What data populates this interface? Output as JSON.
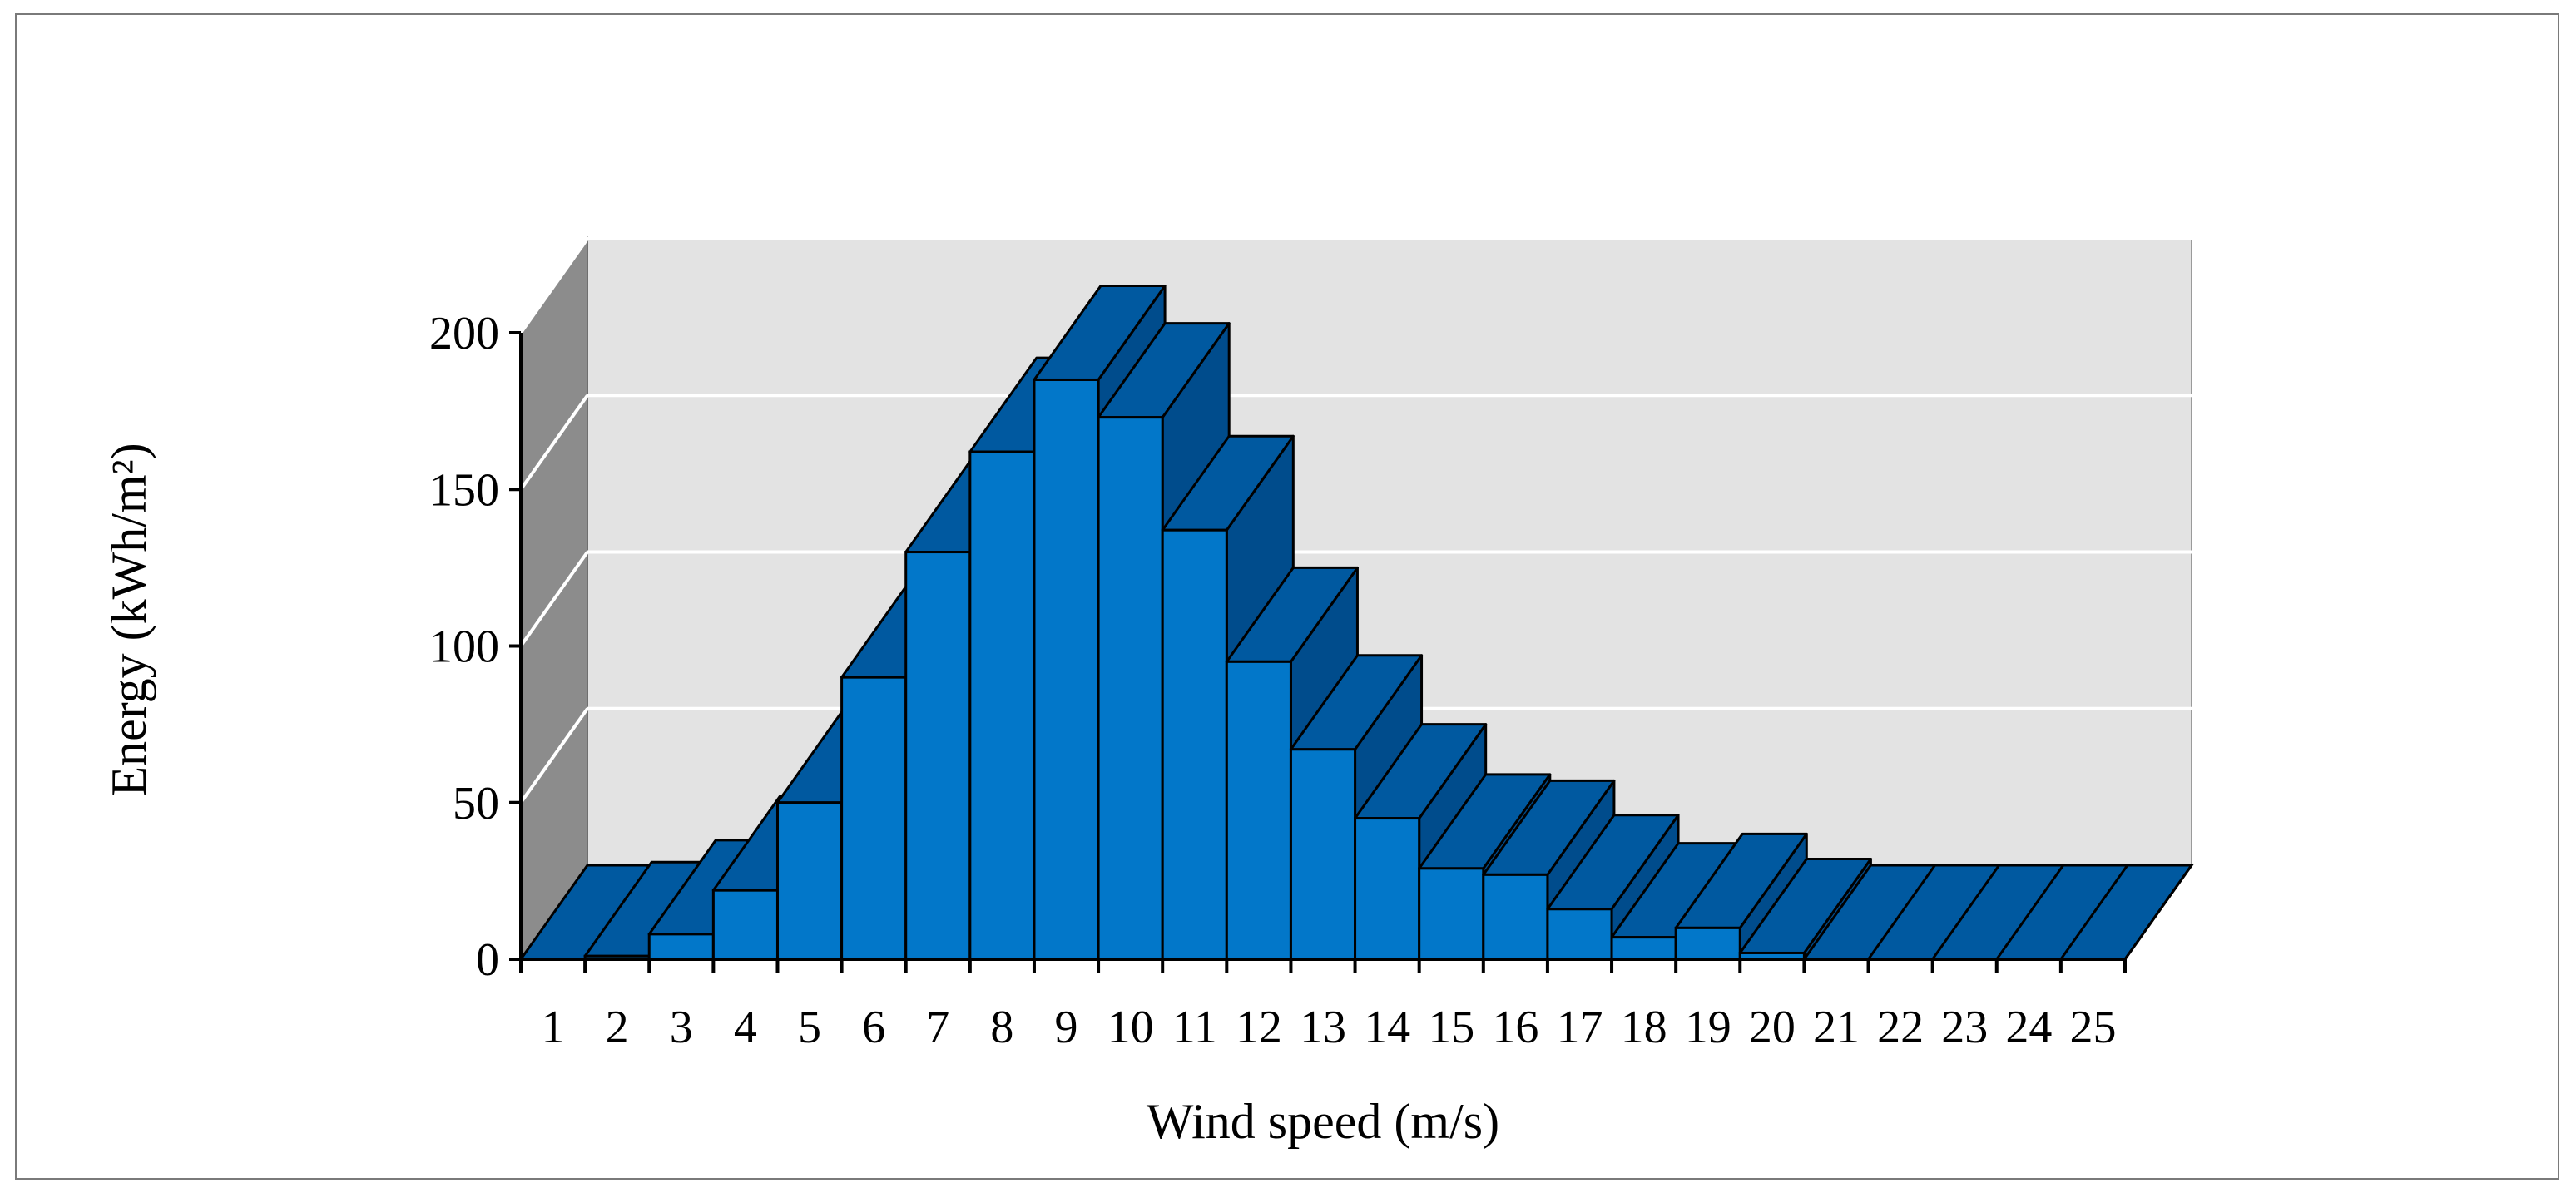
{
  "chart_data": {
    "type": "bar",
    "style": "3d-column",
    "title": "",
    "xlabel": "Wind speed (m/s)",
    "ylabel": "Energy (kWh/m²)",
    "categories": [
      "1",
      "2",
      "3",
      "4",
      "5",
      "6",
      "7",
      "8",
      "9",
      "10",
      "11",
      "12",
      "13",
      "14",
      "15",
      "16",
      "17",
      "18",
      "19",
      "20",
      "21",
      "22",
      "23",
      "24",
      "25"
    ],
    "values": [
      0,
      1,
      8,
      22,
      50,
      90,
      130,
      162,
      185,
      173,
      137,
      95,
      67,
      45,
      29,
      27,
      16,
      7,
      10,
      2,
      0,
      0,
      0,
      0,
      0
    ],
    "ylim": [
      0,
      200
    ],
    "yticks": [
      0,
      50,
      100,
      150,
      200
    ],
    "grid": true,
    "legend": "none",
    "colors": {
      "bar_front": "#0277C9",
      "bar_top": "#0059A0",
      "bar_side": "#004C8C",
      "back_wall": "#E3E3E3",
      "side_wall": "#8C8C8C",
      "gridline": "#FFFFFF"
    }
  }
}
